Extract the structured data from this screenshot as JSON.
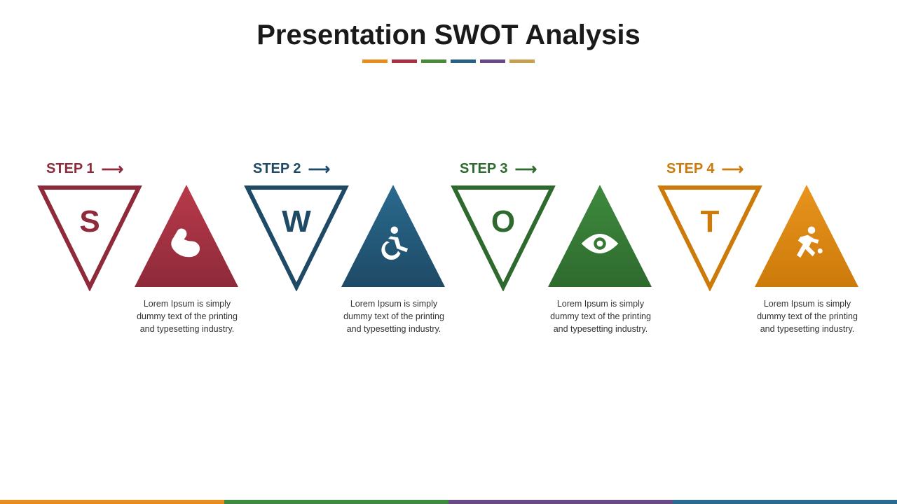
{
  "title": "Presentation SWOT Analysis",
  "title_fontsize": 40,
  "title_color": "#1a1a1a",
  "background_color": "#ffffff",
  "decor_colors": [
    "#e88c1e",
    "#a83244",
    "#4a8a3a",
    "#2a6286",
    "#6a4a86",
    "#c4a050"
  ],
  "steps": [
    {
      "step_label": "STEP 1",
      "letter": "S",
      "color_dark": "#8e2a3a",
      "color_light": "#b83a4a",
      "icon": "muscle",
      "description": "Lorem Ipsum is simply dummy text of the printing and typesetting industry."
    },
    {
      "step_label": "STEP 2",
      "letter": "W",
      "color_dark": "#1e4a66",
      "color_light": "#2a6a8e",
      "icon": "wheelchair",
      "description": "Lorem Ipsum is simply dummy text of the printing and typesetting industry."
    },
    {
      "step_label": "STEP 3",
      "letter": "O",
      "color_dark": "#2e6a2e",
      "color_light": "#3e8a3e",
      "icon": "eye",
      "description": "Lorem Ipsum is simply dummy text of the printing and typesetting industry."
    },
    {
      "step_label": "STEP 4",
      "letter": "T",
      "color_dark": "#cc7a0a",
      "color_light": "#e8941e",
      "icon": "runner",
      "description": "Lorem Ipsum is simply dummy text of the printing and typesetting industry."
    }
  ],
  "bottom_bar_colors": [
    "#e88c1e",
    "#3e8a3e",
    "#6a4a86",
    "#2a6a8e"
  ],
  "description_fontsize": 12.5,
  "step_label_fontsize": 20,
  "letter_fontsize": 44,
  "triangle_stroke_width": 6
}
